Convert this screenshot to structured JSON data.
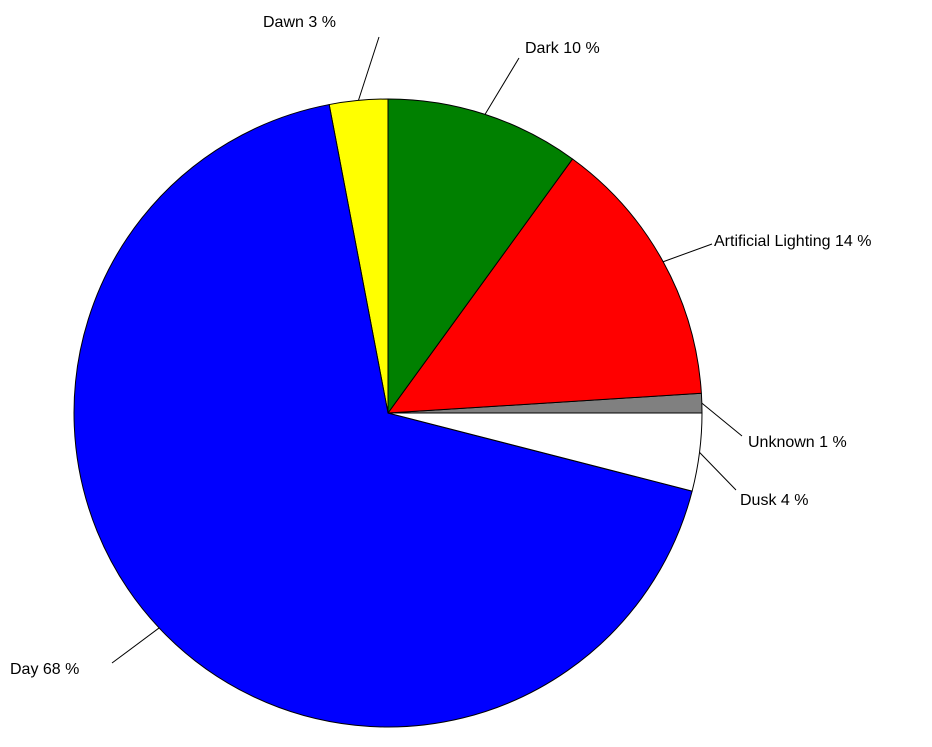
{
  "chart_data": {
    "type": "pie",
    "slices": [
      {
        "label": "Unknown 1 %",
        "value": 1,
        "color": "#808080"
      },
      {
        "label": "Artificial Lighting 14 %",
        "value": 14,
        "color": "#ff0000"
      },
      {
        "label": "Dark 10 %",
        "value": 10,
        "color": "#008000"
      },
      {
        "label": "Dawn 3 %",
        "value": 3,
        "color": "#ffff00"
      },
      {
        "label": "Day 68 %",
        "value": 68,
        "color": "#0000ff"
      },
      {
        "label": "Dusk 4 %",
        "value": 4,
        "color": "#ffffff"
      }
    ],
    "start_angle_deg": 0,
    "direction": "counterclockwise",
    "slice_border_color": "#000000"
  }
}
